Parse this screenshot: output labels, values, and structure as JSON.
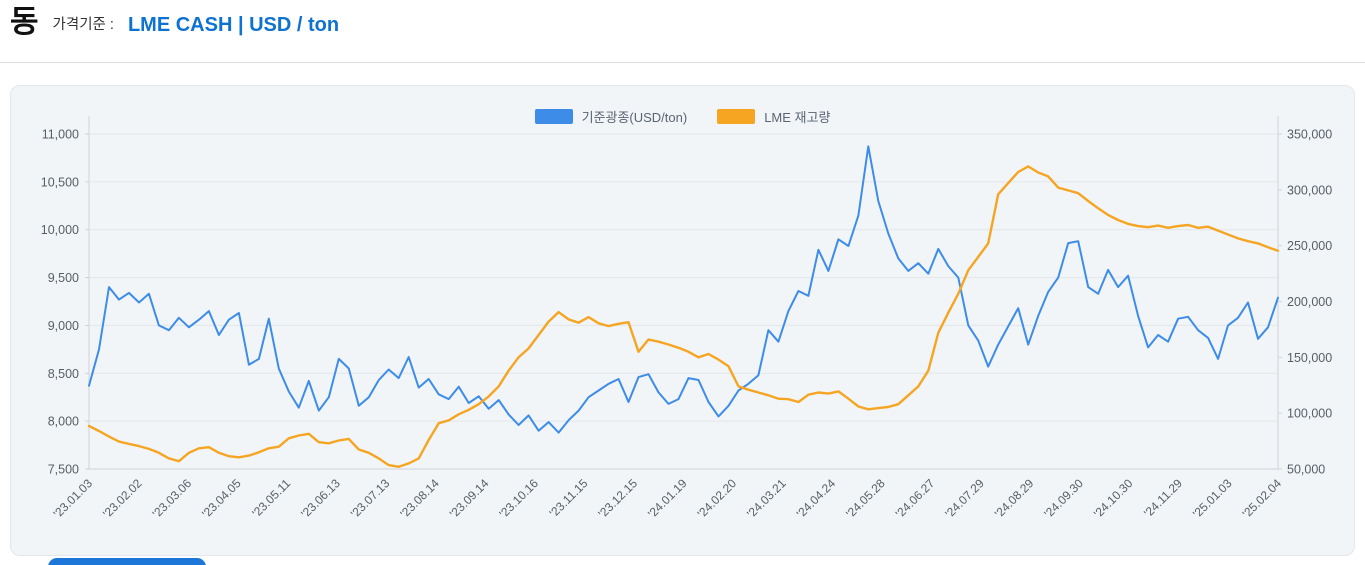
{
  "header": {
    "commodity": "동",
    "price_basis_label": "가격기준 :",
    "price_basis_value": "LME CASH | USD / ton"
  },
  "legend": [
    {
      "label": "기준광종(USD/ton)",
      "color": "#3d8ce8"
    },
    {
      "label": "LME 재고량",
      "color": "#f6a522"
    }
  ],
  "colors": {
    "price_line": "#3d8ce8",
    "inventory_line": "#f6a522",
    "header_accent": "#0e72d1",
    "card_bg": "#f1f5f8",
    "grid": "#e3e7ea",
    "axis": "#ced4da",
    "tick_text": "#565e66"
  },
  "chart_data": {
    "type": "line",
    "title": "",
    "xlabel": "",
    "ylabel_left": "",
    "ylabel_right": "",
    "grid": true,
    "legend_position": "top-center",
    "x_tick_labels": [
      "'23.01.03",
      "'23.02.02",
      "'23.03.06",
      "'23.04.05",
      "'23.05.11",
      "'23.06.13",
      "'23.07.13",
      "'23.08.14",
      "'23.09.14",
      "'23.10.16",
      "'23.11.15",
      "'23.12.15",
      "'24.01.19",
      "'24.02.20",
      "'24.03.21",
      "'24.04.24",
      "'24.05.28",
      "'24.06.27",
      "'24.07.29",
      "'24.08.29",
      "'24.09.30",
      "'24.10.30",
      "'24.11.29",
      "'25.01.03",
      "'25.02.04"
    ],
    "left_axis": {
      "min": 7500,
      "max": 11000,
      "step": 500,
      "tick_labels": [
        "11,000",
        "10,500",
        "10,000",
        "9,500",
        "9,000",
        "8,500",
        "8,000",
        "7,500"
      ]
    },
    "right_axis": {
      "min": 50000,
      "max": 350000,
      "step": 50000,
      "tick_labels": [
        "350,000",
        "300,000",
        "250,000",
        "200,000",
        "150,000",
        "100,000",
        "50,000"
      ]
    },
    "series": [
      {
        "name": "기준광종(USD/ton)",
        "axis": "left",
        "color": "#3d8ce8",
        "values": [
          8370,
          8750,
          9400,
          9270,
          9340,
          9240,
          9330,
          9000,
          8950,
          9080,
          8980,
          9060,
          9150,
          8900,
          9060,
          9130,
          8590,
          8650,
          9070,
          8550,
          8310,
          8140,
          8420,
          8110,
          8250,
          8650,
          8550,
          8160,
          8250,
          8430,
          8540,
          8450,
          8670,
          8350,
          8440,
          8280,
          8230,
          8360,
          8190,
          8260,
          8130,
          8220,
          8070,
          7960,
          8060,
          7900,
          7990,
          7880,
          8010,
          8110,
          8250,
          8320,
          8390,
          8440,
          8200,
          8460,
          8490,
          8300,
          8180,
          8230,
          8450,
          8430,
          8200,
          8050,
          8160,
          8320,
          8390,
          8480,
          8950,
          8830,
          9150,
          9360,
          9310,
          9790,
          9570,
          9900,
          9830,
          10150,
          10870,
          10300,
          9960,
          9700,
          9570,
          9650,
          9540,
          9800,
          9620,
          9500,
          9000,
          8840,
          8570,
          8800,
          8990,
          9180,
          8800,
          9100,
          9350,
          9500,
          9860,
          9880,
          9400,
          9330,
          9580,
          9400,
          9520,
          9100,
          8770,
          8900,
          8830,
          9070,
          9090,
          8950,
          8870,
          8650,
          9000,
          9080,
          9240,
          8860,
          8980,
          9290
        ]
      },
      {
        "name": "LME 재고량",
        "axis": "right",
        "color": "#f6a522",
        "values": [
          88500,
          84000,
          79000,
          74500,
          72500,
          70500,
          68000,
          64500,
          59500,
          57000,
          64500,
          68500,
          69500,
          64500,
          61500,
          60500,
          62000,
          65000,
          68500,
          70000,
          77500,
          80000,
          81500,
          74000,
          73000,
          75500,
          77000,
          67500,
          64500,
          59500,
          53500,
          52000,
          55000,
          59500,
          76000,
          91000,
          93500,
          99000,
          103000,
          108000,
          115000,
          124000,
          138000,
          150000,
          158000,
          170000,
          182000,
          190500,
          184000,
          181000,
          186000,
          180500,
          178000,
          180000,
          181500,
          155000,
          166000,
          164000,
          161500,
          158500,
          155000,
          150000,
          153000,
          148000,
          142000,
          124000,
          121000,
          118500,
          116000,
          113000,
          112500,
          110000,
          116500,
          118500,
          117500,
          119500,
          113000,
          106000,
          103500,
          104500,
          105500,
          108000,
          116000,
          124000,
          138000,
          172000,
          190000,
          207000,
          228000,
          240000,
          252000,
          296000,
          306000,
          316000,
          321000,
          315500,
          312000,
          302000,
          299500,
          297000,
          290000,
          283500,
          277500,
          273000,
          269500,
          267500,
          266500,
          268000,
          266000,
          267500,
          268500,
          266000,
          267000,
          263500,
          260000,
          256500,
          254000,
          252000,
          248500,
          245500
        ]
      }
    ]
  }
}
